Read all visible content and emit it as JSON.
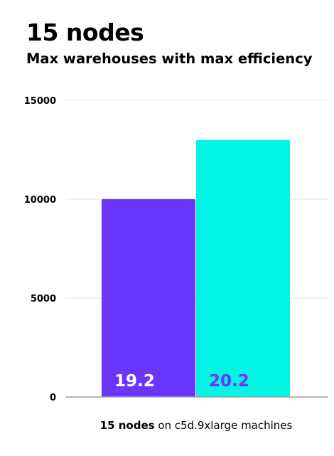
{
  "page": {
    "title": "15 nodes",
    "subtitle": "Max warehouses with max efficiency",
    "caption_bold": "15 nodes",
    "caption_rest": " on c5d.9xlarge machines"
  },
  "colors": {
    "bar1": "#6a35ff",
    "bar2": "#00f5e4",
    "label1": "#ffffff",
    "label2": "#6a35ff",
    "grid": "#e0e0e0",
    "axis": "#9e9e9e"
  },
  "chart_data": {
    "type": "bar",
    "categories": [
      "",
      ""
    ],
    "values": [
      10000,
      13000
    ],
    "data_labels": [
      "19.2",
      "20.2"
    ],
    "yticks": [
      "0",
      "5000",
      "10000",
      "15000"
    ],
    "ytick_values": [
      0,
      5000,
      10000,
      15000
    ],
    "ylim": [
      0,
      15000
    ],
    "grid": true,
    "legend": "none"
  }
}
